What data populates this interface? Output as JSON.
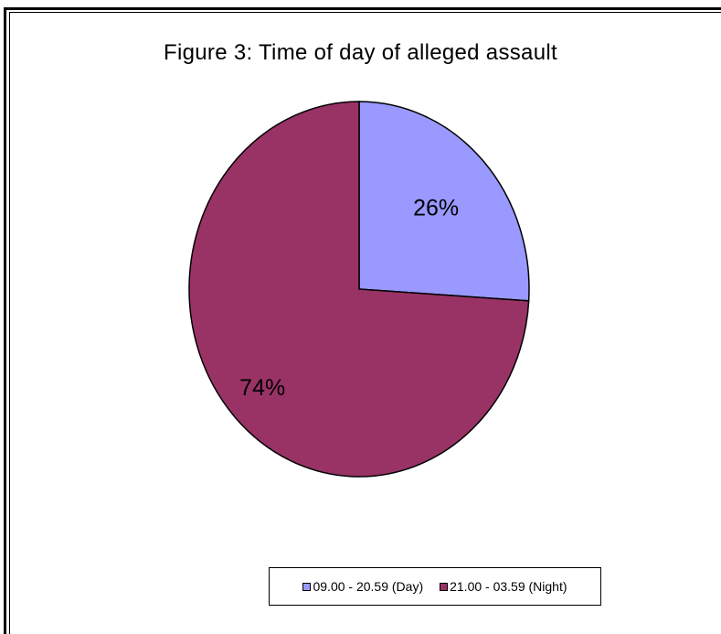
{
  "chart_data": {
    "type": "pie",
    "title": "Figure 3: Time of day of alleged assault",
    "categories": [
      "09.00 - 20.59 (Day)",
      "21.00 - 03.59 (Night)"
    ],
    "values": [
      26,
      74
    ],
    "data_labels": [
      "26%",
      "74%"
    ],
    "colors": [
      "#9999ff",
      "#993366"
    ],
    "legend_placement": "bottom"
  }
}
